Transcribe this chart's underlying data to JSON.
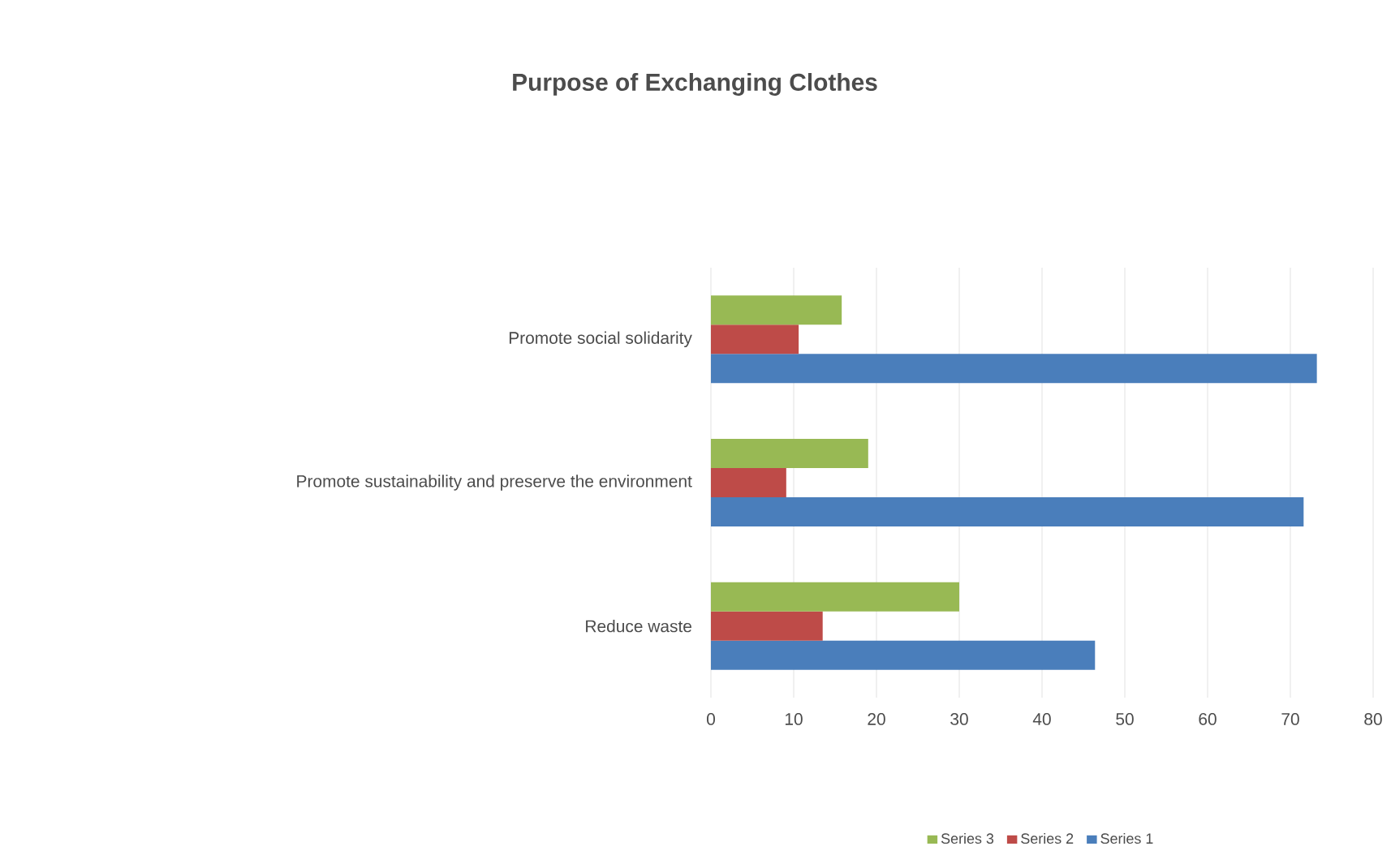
{
  "chart_data": {
    "type": "bar",
    "orientation": "horizontal",
    "title": "Purpose of Exchanging Clothes",
    "categories": [
      "Promote social solidarity",
      "Promote sustainability and preserve the environment",
      "Reduce waste"
    ],
    "series": [
      {
        "name": "Series 1",
        "color": "#4a7ebb",
        "values": [
          73.2,
          71.6,
          46.4
        ]
      },
      {
        "name": "Series 2",
        "color": "#be4b48",
        "values": [
          10.6,
          9.1,
          13.5
        ]
      },
      {
        "name": "Series 3",
        "color": "#98b954",
        "values": [
          15.8,
          19,
          30
        ]
      }
    ],
    "xlim": [
      0,
      80
    ],
    "xticks": [
      0,
      10,
      20,
      30,
      40,
      50,
      60,
      70,
      80
    ],
    "grid": "x",
    "legend": "bottom"
  }
}
